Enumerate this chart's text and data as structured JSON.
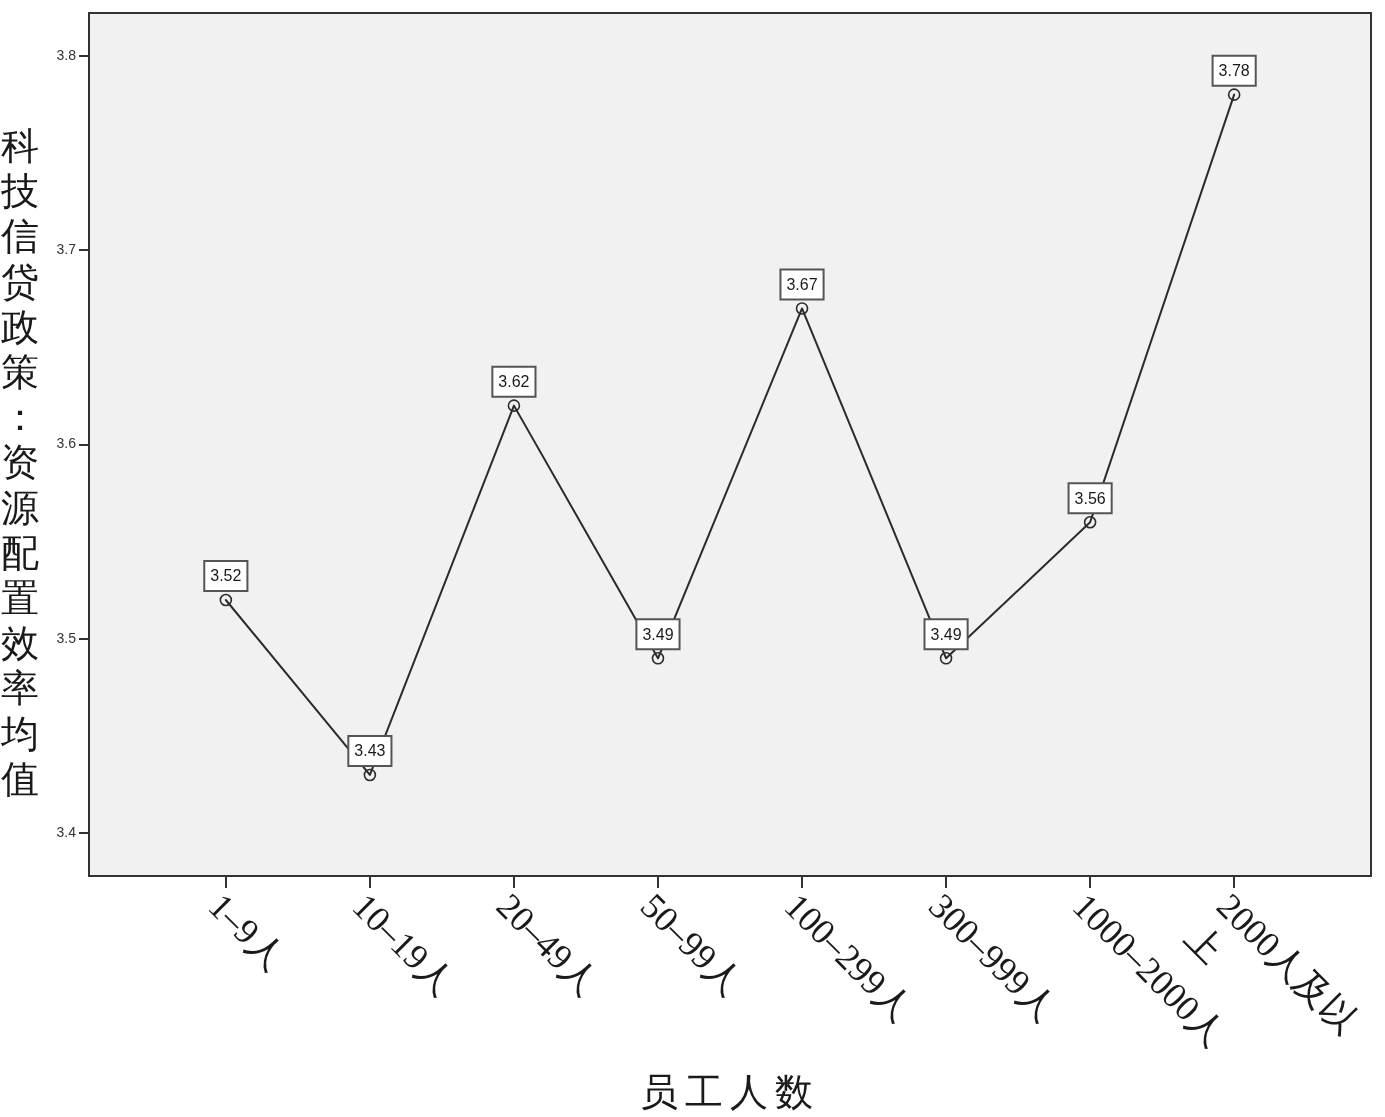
{
  "chart_data": {
    "type": "line",
    "xlabel": "员工人数",
    "ylabel": "科技信贷政策：资源配置效率均值",
    "categories": [
      "1–9人",
      "10–19人",
      "20–49人",
      "50–99人",
      "100–299人",
      "300–999人",
      "1000–2000人",
      "2000人及以上"
    ],
    "series": [
      {
        "color": "#2b2b2b",
        "values": [
          3.52,
          3.43,
          3.62,
          3.49,
          3.67,
          3.49,
          3.56,
          3.78
        ]
      }
    ],
    "ylim": [
      3.378,
      3.822
    ],
    "yticks": [
      3.4,
      3.5,
      3.6,
      3.7,
      3.8
    ],
    "data_labels": true,
    "marker": "circle",
    "line_style": "solid"
  }
}
